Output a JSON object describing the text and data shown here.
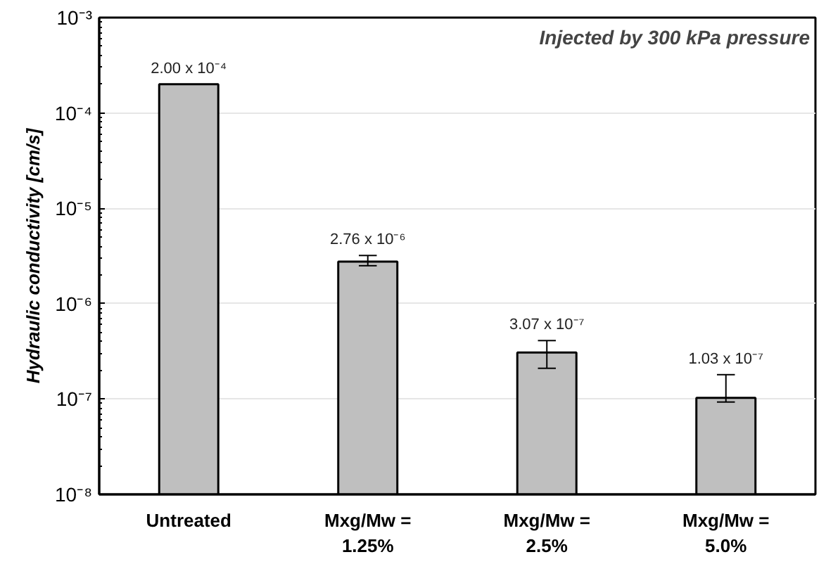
{
  "chart_data": {
    "type": "bar",
    "ylabel": "Hydraulic conductivity [cm/s]",
    "annotations": [
      "Injected by 300 kPa pressure"
    ],
    "categories": [
      "Untreated",
      "Mxg/Mw =\n1.25%",
      "Mxg/Mw =\n2.5%",
      "Mxg/Mw =\n5.0%"
    ],
    "values": [
      0.0002,
      2.76e-06,
      3.07e-07,
      1.03e-07
    ],
    "color": "#bfbfbf",
    "errors": [
      null,
      [
        2.5e-06,
        3.2e-06
      ],
      [
        2.1e-07,
        4.1e-07
      ],
      [
        9.3e-08,
        1.8e-07
      ]
    ],
    "value_labels": [
      "2.00 x 10⁻⁴",
      "2.76 x 10⁻⁶",
      "3.07 x 10⁻⁷",
      "1.03 x 10⁻⁷"
    ],
    "log": true,
    "ylim": [
      1e-08,
      0.001
    ],
    "yticks": [
      {
        "value": 1e-08,
        "label": "10⁻⁸"
      },
      {
        "value": 1e-07,
        "label": "10⁻⁷"
      },
      {
        "value": 1e-06,
        "label": "10⁻⁶"
      },
      {
        "value": 1e-05,
        "label": "10⁻⁵"
      },
      {
        "value": 0.0001,
        "label": "10⁻⁴"
      },
      {
        "value": 0.001,
        "label": "10⁻³"
      }
    ],
    "grid": "y"
  }
}
